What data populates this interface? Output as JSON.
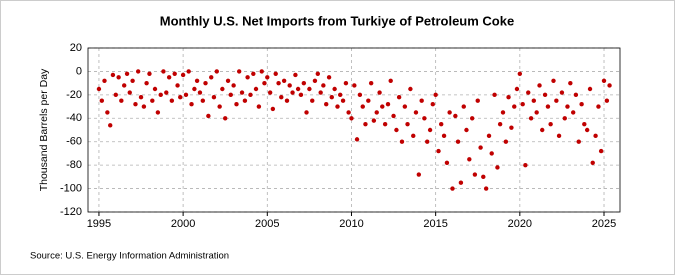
{
  "chart_data": {
    "type": "scatter",
    "title": "Monthly U.S. Net Imports from Turkiye of Petroleum Coke",
    "y_label": "Thousand Barrels per Day",
    "source": "Source: U.S. Energy Information Administration",
    "color": "#c00000",
    "grid": true,
    "xlim": [
      1994.35,
      2025.95
    ],
    "xticks": [
      1995,
      2000,
      2005,
      2010,
      2015,
      2020,
      2025
    ],
    "ylim": [
      -120,
      20
    ],
    "yticks": [
      20,
      0,
      -20,
      -40,
      -60,
      -80,
      -100,
      -120
    ],
    "x": [
      1995.0,
      1995.17,
      1995.33,
      1995.5,
      1995.67,
      1995.83,
      1996.0,
      1996.17,
      1996.33,
      1996.5,
      1996.67,
      1996.83,
      1997.0,
      1997.17,
      1997.33,
      1997.5,
      1997.67,
      1997.83,
      1998.0,
      1998.17,
      1998.33,
      1998.5,
      1998.67,
      1998.83,
      1999.0,
      1999.17,
      1999.33,
      1999.5,
      1999.67,
      1999.83,
      2000.0,
      2000.17,
      2000.33,
      2000.5,
      2000.67,
      2000.83,
      2001.0,
      2001.17,
      2001.33,
      2001.5,
      2001.67,
      2001.83,
      2002.0,
      2002.17,
      2002.33,
      2002.5,
      2002.67,
      2002.83,
      2003.0,
      2003.17,
      2003.33,
      2003.5,
      2003.67,
      2003.83,
      2004.0,
      2004.17,
      2004.33,
      2004.5,
      2004.67,
      2004.83,
      2005.0,
      2005.17,
      2005.33,
      2005.5,
      2005.67,
      2005.83,
      2006.0,
      2006.17,
      2006.33,
      2006.5,
      2006.67,
      2006.83,
      2007.0,
      2007.17,
      2007.33,
      2007.5,
      2007.67,
      2007.83,
      2008.0,
      2008.17,
      2008.33,
      2008.5,
      2008.67,
      2008.83,
      2009.0,
      2009.17,
      2009.33,
      2009.5,
      2009.67,
      2009.83,
      2010.0,
      2010.17,
      2010.33,
      2010.5,
      2010.67,
      2010.83,
      2011.0,
      2011.17,
      2011.33,
      2011.5,
      2011.67,
      2011.83,
      2012.0,
      2012.17,
      2012.33,
      2012.5,
      2012.67,
      2012.83,
      2013.0,
      2013.17,
      2013.33,
      2013.5,
      2013.67,
      2013.83,
      2014.0,
      2014.17,
      2014.33,
      2014.5,
      2014.67,
      2014.83,
      2015.0,
      2015.17,
      2015.33,
      2015.5,
      2015.67,
      2015.83,
      2016.0,
      2016.17,
      2016.33,
      2016.5,
      2016.67,
      2016.83,
      2017.0,
      2017.17,
      2017.33,
      2017.5,
      2017.67,
      2017.83,
      2018.0,
      2018.17,
      2018.33,
      2018.5,
      2018.67,
      2018.83,
      2019.0,
      2019.17,
      2019.33,
      2019.5,
      2019.67,
      2019.83,
      2020.0,
      2020.17,
      2020.33,
      2020.5,
      2020.67,
      2020.83,
      2021.0,
      2021.17,
      2021.33,
      2021.5,
      2021.67,
      2021.83,
      2022.0,
      2022.17,
      2022.33,
      2022.5,
      2022.67,
      2022.83,
      2023.0,
      2023.17,
      2023.33,
      2023.5,
      2023.67,
      2023.83,
      2024.0,
      2024.17,
      2024.33,
      2024.5,
      2024.67,
      2024.83,
      2025.0,
      2025.17,
      2025.33
    ],
    "values": [
      -15,
      -25,
      -8,
      -35,
      -46,
      -3,
      -20,
      -5,
      -25,
      -12,
      -2,
      -18,
      -8,
      -28,
      0,
      -22,
      -30,
      -10,
      -2,
      -25,
      -15,
      -35,
      -20,
      0,
      -18,
      -5,
      -25,
      -2,
      -12,
      -22,
      -3,
      -20,
      0,
      -28,
      -15,
      -8,
      -18,
      -25,
      -10,
      -38,
      -5,
      -22,
      0,
      -30,
      -15,
      -40,
      -8,
      -20,
      -12,
      -28,
      0,
      -18,
      -25,
      -5,
      -20,
      -2,
      -15,
      -30,
      0,
      -10,
      -5,
      -18,
      -32,
      -2,
      -10,
      -22,
      -8,
      -25,
      -12,
      -18,
      -3,
      -15,
      -20,
      -10,
      -35,
      -15,
      -25,
      -8,
      -2,
      -18,
      -12,
      -28,
      -5,
      -22,
      -15,
      -30,
      -20,
      -25,
      -10,
      -35,
      -40,
      -12,
      -58,
      -20,
      -30,
      -45,
      -25,
      -10,
      -42,
      -35,
      -18,
      -30,
      -45,
      -28,
      -8,
      -38,
      -50,
      -22,
      -60,
      -30,
      -45,
      -15,
      -55,
      -35,
      -88,
      -25,
      -40,
      -60,
      -50,
      -28,
      -20,
      -68,
      -45,
      -55,
      -78,
      -35,
      -100,
      -38,
      -60,
      -95,
      -30,
      -50,
      -75,
      -40,
      -88,
      -25,
      -65,
      -90,
      -100,
      -55,
      -70,
      -20,
      -82,
      -45,
      -35,
      -60,
      -22,
      -48,
      -30,
      -15,
      -2,
      -28,
      -80,
      -18,
      -40,
      -25,
      -35,
      -12,
      -50,
      -20,
      -30,
      -45,
      -8,
      -25,
      -55,
      -18,
      -40,
      -30,
      -10,
      -35,
      -20,
      -60,
      -28,
      -45,
      -50,
      -15,
      -78,
      -55,
      -30,
      -68,
      -8,
      -25,
      -12
    ]
  }
}
